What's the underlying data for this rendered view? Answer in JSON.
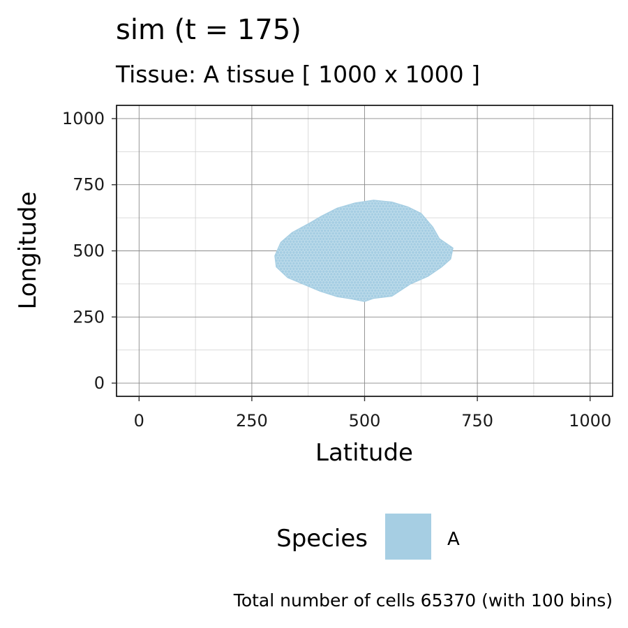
{
  "chart_data": {
    "type": "heatmap",
    "title": "sim (t = 175)",
    "subtitle": "Tissue: A tissue [ 1000 x 1000 ]",
    "xlabel": "Latitude",
    "ylabel": "Longitude",
    "xlim": [
      -50,
      1050
    ],
    "ylim": [
      -50,
      1050
    ],
    "x_ticks": [
      0,
      250,
      500,
      750,
      1000
    ],
    "y_ticks": [
      0,
      250,
      500,
      750,
      1000
    ],
    "x_tick_labels": [
      "0",
      "250",
      "500",
      "750",
      "1000"
    ],
    "y_tick_labels": [
      "0",
      "250",
      "500",
      "750",
      "1000"
    ],
    "grid": true,
    "legend": {
      "title": "Species",
      "position": "bottom",
      "entries": [
        {
          "label": "A",
          "color": "#a6cee3"
        }
      ]
    },
    "series": [
      {
        "name": "A",
        "color": "#a6cee3",
        "region_shape": "hexagonal-bin blob",
        "outline": [
          [
            302,
            481
          ],
          [
            315,
            531
          ],
          [
            340,
            568
          ],
          [
            380,
            605
          ],
          [
            405,
            630
          ],
          [
            440,
            660
          ],
          [
            480,
            680
          ],
          [
            520,
            690
          ],
          [
            560,
            683
          ],
          [
            595,
            665
          ],
          [
            625,
            640
          ],
          [
            650,
            590
          ],
          [
            665,
            545
          ],
          [
            695,
            510
          ],
          [
            690,
            470
          ],
          [
            670,
            440
          ],
          [
            640,
            405
          ],
          [
            600,
            375
          ],
          [
            560,
            330
          ],
          [
            520,
            322
          ],
          [
            500,
            310
          ],
          [
            470,
            320
          ],
          [
            440,
            328
          ],
          [
            400,
            350
          ],
          [
            330,
            400
          ],
          [
            305,
            440
          ]
        ]
      }
    ],
    "caption": "Total number of cells 65370 (with 100 bins)"
  }
}
